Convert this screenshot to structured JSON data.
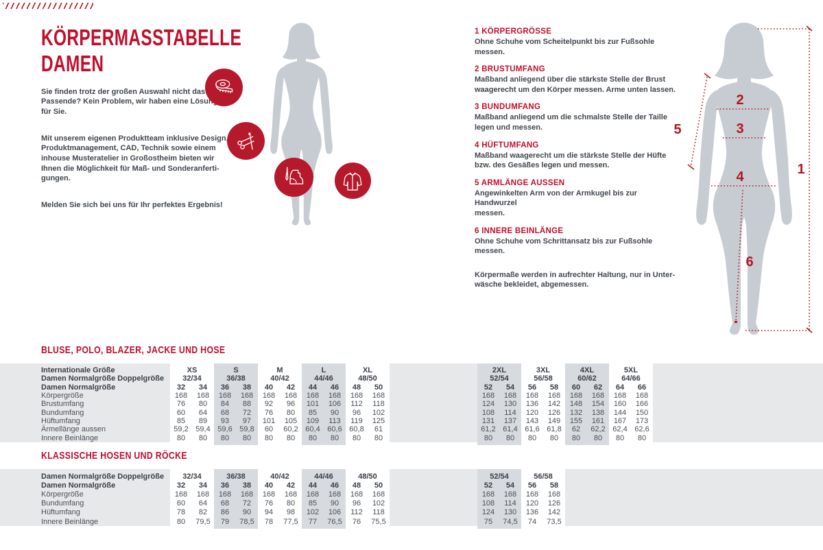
{
  "colors": {
    "accent_red": "#c10e2b",
    "icon_circle_red": "#b5192b",
    "measure_line_red": "#b3161f",
    "silhouette_gray": "#c7ccd2",
    "band_light": "#e7e8ea",
    "band_dark": "#d7dade"
  },
  "intro": {
    "title": "KÖRPERMASSTABELLE\nDAMEN",
    "paragraphs": [
      "Sie finden trotz der großen Auswahl nicht das\nPassende? Kein Problem, wir haben eine Lösung\nfür Sie.",
      "Mit unserem eigenen Produktteam inklusive Design,\nProduktmanagement, CAD, Technik sowie einem\ninhouse Musteratelier in Großostheim bieten wir\nIhnen die Möglichkeit für Maß- und Sonderanferti-\ngungen.",
      "Melden Sie sich bei uns für Ihr perfektes Ergebnis!"
    ]
  },
  "icons": [
    "tape-measure-icon",
    "scissors-icon",
    "pattern-awl-icon",
    "jacket-icon"
  ],
  "instructions": {
    "items": [
      {
        "num": "1",
        "title": "1 KÖRPERGRÖSSE",
        "text": "Ohne Schuhe vom Scheitelpunkt bis zur Fußsohle messen."
      },
      {
        "num": "2",
        "title": "2 BRUSTUMFANG",
        "text": "Maßband anliegend über die stärkste Stelle der Brust\nwaagerecht um den Körper messen. Arme unten lassen."
      },
      {
        "num": "3",
        "title": "3 BUNDUMFANG",
        "text": "Maßband anliegend um die schmalste Stelle der Taille\nlegen und messen."
      },
      {
        "num": "4",
        "title": "4 HÜFTUMFANG",
        "text": "Maßband waagerecht um die stärkste Stelle der Hüfte\nbzw. des Gesäßes legen und messen."
      },
      {
        "num": "5",
        "title": "5 ARMLÄNGE AUSSEN",
        "text": "Angewinkelten Arm von der Armkugel bis zur Handwurzel\nmessen."
      },
      {
        "num": "6",
        "title": "6 INNERE BEINLÄNGE",
        "text": "Ohne Schuhe vom Schrittansatz bis zur Fußsohle messen."
      }
    ],
    "note": "Körpermaße werden in aufrechter Haltung, nur in Unter-\nwäsche bekleidet, abgemessen."
  },
  "figure": {
    "numbers": [
      "1",
      "2",
      "3",
      "4",
      "5",
      "6"
    ]
  },
  "tables": [
    {
      "title": "BLUSE, POLO, BLAZER, JACKE UND HOSE",
      "header_rows": [
        {
          "label": "Internationale Größe",
          "type": "group",
          "left": [
            "XS",
            "S",
            "M",
            "L",
            "XL"
          ],
          "right": [
            "2XL",
            "3XL",
            "4XL",
            "5XL"
          ]
        },
        {
          "label": "Damen Normalgröße Doppelgröße",
          "type": "group",
          "left": [
            "32/34",
            "36/38",
            "40/42",
            "44/46",
            "48/50"
          ],
          "right": [
            "52/54",
            "56/58",
            "60/62",
            "64/66"
          ]
        },
        {
          "label": "Damen Normalgröße",
          "type": "cells",
          "left": [
            "32",
            "34",
            "36",
            "38",
            "40",
            "42",
            "44",
            "46",
            "48",
            "50"
          ],
          "right": [
            "52",
            "54",
            "56",
            "58",
            "60",
            "62",
            "64",
            "66"
          ]
        }
      ],
      "rows": [
        {
          "label": "Körpergröße",
          "left": [
            "168",
            "168",
            "168",
            "168",
            "168",
            "168",
            "168",
            "168",
            "168",
            "168"
          ],
          "right": [
            "168",
            "168",
            "168",
            "168",
            "168",
            "168",
            "168",
            "168"
          ]
        },
        {
          "label": "Brustumfang",
          "left": [
            "76",
            "80",
            "84",
            "88",
            "92",
            "96",
            "101",
            "106",
            "112",
            "118"
          ],
          "right": [
            "124",
            "130",
            "136",
            "142",
            "148",
            "154",
            "160",
            "166"
          ]
        },
        {
          "label": "Bundumfang",
          "left": [
            "60",
            "64",
            "68",
            "72",
            "76",
            "80",
            "85",
            "90",
            "96",
            "102"
          ],
          "right": [
            "108",
            "114",
            "120",
            "126",
            "132",
            "138",
            "144",
            "150"
          ]
        },
        {
          "label": "Hüftumfang",
          "left": [
            "85",
            "89",
            "93",
            "97",
            "101",
            "105",
            "109",
            "113",
            "119",
            "125"
          ],
          "right": [
            "131",
            "137",
            "143",
            "149",
            "155",
            "161",
            "167",
            "173"
          ]
        },
        {
          "label": "Ärmellänge aussen",
          "left": [
            "59,2",
            "59,4",
            "59,6",
            "59,8",
            "60",
            "60,2",
            "60,4",
            "60,6",
            "60,8",
            "61"
          ],
          "right": [
            "61,2",
            "61,4",
            "61,6",
            "61,8",
            "62",
            "62,2",
            "62,4",
            "62,6"
          ]
        },
        {
          "label": "Innere Beinlänge",
          "left": [
            "80",
            "80",
            "80",
            "80",
            "80",
            "80",
            "80",
            "80",
            "80",
            "80"
          ],
          "right": [
            "80",
            "80",
            "80",
            "80",
            "80",
            "80",
            "80",
            "80"
          ]
        }
      ]
    },
    {
      "title": "KLASSISCHE HOSEN UND RÖCKE",
      "header_rows": [
        {
          "label": "Damen Normalgröße Doppelgröße",
          "type": "group",
          "left": [
            "32/34",
            "36/38",
            "40/42",
            "44/46",
            "48/50"
          ],
          "right": [
            "52/54",
            "56/58"
          ]
        },
        {
          "label": "Damen Normalgröße",
          "type": "cells",
          "left": [
            "32",
            "34",
            "36",
            "38",
            "40",
            "42",
            "44",
            "46",
            "48",
            "50"
          ],
          "right": [
            "52",
            "54",
            "56",
            "58"
          ]
        }
      ],
      "rows": [
        {
          "label": "Körpergröße",
          "left": [
            "168",
            "168",
            "168",
            "168",
            "168",
            "168",
            "168",
            "168",
            "168",
            "168"
          ],
          "right": [
            "168",
            "168",
            "168",
            "168"
          ]
        },
        {
          "label": "Bundumfang",
          "left": [
            "60",
            "64",
            "68",
            "72",
            "76",
            "80",
            "85",
            "90",
            "96",
            "102"
          ],
          "right": [
            "108",
            "114",
            "120",
            "126"
          ]
        },
        {
          "label": "Hüftumfang",
          "left": [
            "78",
            "82",
            "86",
            "90",
            "94",
            "98",
            "102",
            "106",
            "112",
            "118"
          ],
          "right": [
            "124",
            "130",
            "136",
            "142"
          ]
        },
        {
          "label": "Innere Beinlänge",
          "left": [
            "80",
            "79,5",
            "79",
            "78,5",
            "78",
            "77,5",
            "77",
            "76,5",
            "76",
            "75,5"
          ],
          "right": [
            "75",
            "74,5",
            "74",
            "73,5"
          ]
        }
      ]
    }
  ]
}
